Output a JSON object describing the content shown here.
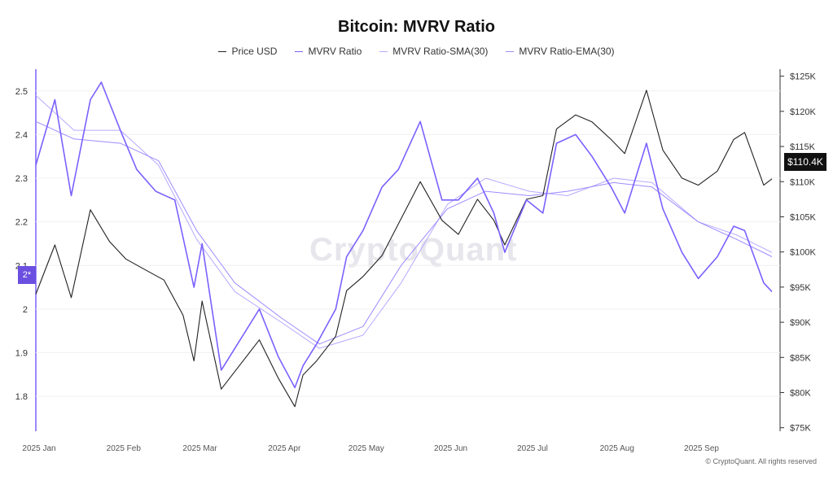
{
  "chart_data": {
    "type": "line",
    "title": "Bitcoin: MVRV Ratio",
    "legend": [
      {
        "name": "Price USD",
        "color": "#222222"
      },
      {
        "name": "MVRV Ratio",
        "color": "#7b61ff"
      },
      {
        "name": "MVRV Ratio-SMA(30)",
        "color": "#b7aaff"
      },
      {
        "name": "MVRV Ratio-EMA(30)",
        "color": "#9c8cff"
      }
    ],
    "legend_position": "top",
    "x_ticks": [
      "2025 Jan",
      "2025 Feb",
      "2025 Mar",
      "2025 Apr",
      "2025 May",
      "2025 Jun",
      "2025 Jul",
      "2025 Aug",
      "2025 Sep"
    ],
    "y_left_ticks": [
      "1.8",
      "1.9",
      "2",
      "2.1",
      "2.2",
      "2.3",
      "2.4",
      "2.5"
    ],
    "y_left_range": [
      1.72,
      2.55
    ],
    "y_right_ticks": [
      "$75K",
      "$80K",
      "$85K",
      "$90K",
      "$95K",
      "$100K",
      "$105K",
      "$110K",
      "$115K",
      "$120K",
      "$125K"
    ],
    "y_right_range": [
      74500,
      126000
    ],
    "current_mvrv_label": "2*",
    "current_price_label": "$110.4K",
    "current_mvrv": 2.05,
    "current_price": 110400,
    "series": [
      {
        "name": "Price USD",
        "axis": "right",
        "color": "#222222",
        "points": [
          [
            "2025-01-01",
            94000
          ],
          [
            "2025-01-08",
            101000
          ],
          [
            "2025-01-14",
            93500
          ],
          [
            "2025-01-21",
            106000
          ],
          [
            "2025-01-28",
            101500
          ],
          [
            "2025-02-03",
            99000
          ],
          [
            "2025-02-10",
            97500
          ],
          [
            "2025-02-17",
            96000
          ],
          [
            "2025-02-24",
            91000
          ],
          [
            "2025-02-28",
            84500
          ],
          [
            "2025-03-03",
            93000
          ],
          [
            "2025-03-10",
            80500
          ],
          [
            "2025-03-17",
            84000
          ],
          [
            "2025-03-24",
            87500
          ],
          [
            "2025-03-31",
            82000
          ],
          [
            "2025-04-06",
            78000
          ],
          [
            "2025-04-09",
            82500
          ],
          [
            "2025-04-14",
            84500
          ],
          [
            "2025-04-21",
            88000
          ],
          [
            "2025-04-25",
            94500
          ],
          [
            "2025-05-01",
            96500
          ],
          [
            "2025-05-08",
            99500
          ],
          [
            "2025-05-14",
            104000
          ],
          [
            "2025-05-22",
            110000
          ],
          [
            "2025-05-30",
            104500
          ],
          [
            "2025-06-05",
            102500
          ],
          [
            "2025-06-12",
            107500
          ],
          [
            "2025-06-18",
            104500
          ],
          [
            "2025-06-22",
            101000
          ],
          [
            "2025-06-30",
            107500
          ],
          [
            "2025-07-06",
            108000
          ],
          [
            "2025-07-11",
            117500
          ],
          [
            "2025-07-18",
            119500
          ],
          [
            "2025-07-24",
            118500
          ],
          [
            "2025-07-31",
            116000
          ],
          [
            "2025-08-05",
            114000
          ],
          [
            "2025-08-13",
            123000
          ],
          [
            "2025-08-19",
            114500
          ],
          [
            "2025-08-26",
            110500
          ],
          [
            "2025-09-01",
            109500
          ],
          [
            "2025-09-08",
            111500
          ],
          [
            "2025-09-14",
            116000
          ],
          [
            "2025-09-18",
            117000
          ],
          [
            "2025-09-25",
            109500
          ],
          [
            "2025-09-28",
            110400
          ]
        ]
      },
      {
        "name": "MVRV Ratio",
        "axis": "left",
        "color": "#7b61ff",
        "points": [
          [
            "2025-01-01",
            2.33
          ],
          [
            "2025-01-08",
            2.48
          ],
          [
            "2025-01-14",
            2.26
          ],
          [
            "2025-01-21",
            2.48
          ],
          [
            "2025-01-25",
            2.52
          ],
          [
            "2025-02-01",
            2.41
          ],
          [
            "2025-02-07",
            2.32
          ],
          [
            "2025-02-14",
            2.27
          ],
          [
            "2025-02-21",
            2.25
          ],
          [
            "2025-02-28",
            2.05
          ],
          [
            "2025-03-03",
            2.15
          ],
          [
            "2025-03-10",
            1.86
          ],
          [
            "2025-03-17",
            1.93
          ],
          [
            "2025-03-24",
            2.0
          ],
          [
            "2025-03-31",
            1.89
          ],
          [
            "2025-04-06",
            1.82
          ],
          [
            "2025-04-09",
            1.87
          ],
          [
            "2025-04-14",
            1.92
          ],
          [
            "2025-04-21",
            2.0
          ],
          [
            "2025-04-25",
            2.12
          ],
          [
            "2025-05-01",
            2.18
          ],
          [
            "2025-05-08",
            2.28
          ],
          [
            "2025-05-14",
            2.32
          ],
          [
            "2025-05-22",
            2.43
          ],
          [
            "2025-05-30",
            2.25
          ],
          [
            "2025-06-05",
            2.25
          ],
          [
            "2025-06-12",
            2.3
          ],
          [
            "2025-06-18",
            2.22
          ],
          [
            "2025-06-22",
            2.13
          ],
          [
            "2025-06-30",
            2.25
          ],
          [
            "2025-07-06",
            2.22
          ],
          [
            "2025-07-11",
            2.38
          ],
          [
            "2025-07-18",
            2.4
          ],
          [
            "2025-07-24",
            2.35
          ],
          [
            "2025-07-31",
            2.28
          ],
          [
            "2025-08-05",
            2.22
          ],
          [
            "2025-08-13",
            2.38
          ],
          [
            "2025-08-19",
            2.23
          ],
          [
            "2025-08-26",
            2.13
          ],
          [
            "2025-09-01",
            2.07
          ],
          [
            "2025-09-08",
            2.12
          ],
          [
            "2025-09-14",
            2.19
          ],
          [
            "2025-09-18",
            2.18
          ],
          [
            "2025-09-25",
            2.06
          ],
          [
            "2025-09-28",
            2.04
          ]
        ]
      },
      {
        "name": "MVRV Ratio-SMA(30)",
        "axis": "left",
        "color": "#b7aaff",
        "points": [
          [
            "2025-01-01",
            2.49
          ],
          [
            "2025-01-15",
            2.41
          ],
          [
            "2025-02-01",
            2.41
          ],
          [
            "2025-02-15",
            2.33
          ],
          [
            "2025-03-01",
            2.16
          ],
          [
            "2025-03-15",
            2.04
          ],
          [
            "2025-04-01",
            1.97
          ],
          [
            "2025-04-15",
            1.91
          ],
          [
            "2025-05-01",
            1.94
          ],
          [
            "2025-05-15",
            2.06
          ],
          [
            "2025-06-01",
            2.24
          ],
          [
            "2025-06-15",
            2.3
          ],
          [
            "2025-07-01",
            2.27
          ],
          [
            "2025-07-15",
            2.26
          ],
          [
            "2025-08-01",
            2.3
          ],
          [
            "2025-08-15",
            2.29
          ],
          [
            "2025-09-01",
            2.2
          ],
          [
            "2025-09-15",
            2.17
          ],
          [
            "2025-09-28",
            2.13
          ]
        ]
      },
      {
        "name": "MVRV Ratio-EMA(30)",
        "axis": "left",
        "color": "#9c8cff",
        "points": [
          [
            "2025-01-01",
            2.43
          ],
          [
            "2025-01-15",
            2.39
          ],
          [
            "2025-02-01",
            2.38
          ],
          [
            "2025-02-15",
            2.34
          ],
          [
            "2025-03-01",
            2.18
          ],
          [
            "2025-03-15",
            2.06
          ],
          [
            "2025-04-01",
            1.98
          ],
          [
            "2025-04-15",
            1.92
          ],
          [
            "2025-05-01",
            1.96
          ],
          [
            "2025-05-15",
            2.1
          ],
          [
            "2025-06-01",
            2.23
          ],
          [
            "2025-06-15",
            2.27
          ],
          [
            "2025-07-01",
            2.26
          ],
          [
            "2025-07-15",
            2.27
          ],
          [
            "2025-08-01",
            2.29
          ],
          [
            "2025-08-15",
            2.28
          ],
          [
            "2025-09-01",
            2.2
          ],
          [
            "2025-09-15",
            2.16
          ],
          [
            "2025-09-28",
            2.12
          ]
        ]
      }
    ]
  },
  "watermark": "CryptoQuant",
  "copyright": "© CryptoQuant. All rights reserved"
}
